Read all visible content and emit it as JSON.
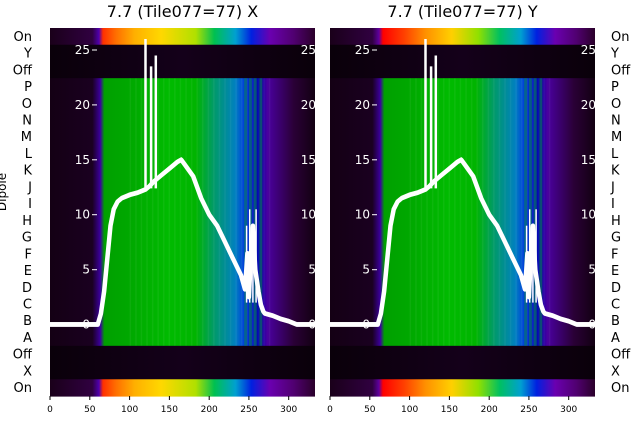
{
  "chart_data": [
    {
      "type": "heatmap",
      "title": "7.7 (Tile077=77) X",
      "ylabel": "Dipole",
      "x_ticks": [
        0,
        50,
        100,
        150,
        200,
        250,
        300
      ],
      "xlim": [
        0,
        333
      ],
      "row_labels": [
        "On",
        "Y",
        "Off",
        "P",
        "O",
        "N",
        "M",
        "L",
        "K",
        "J",
        "I",
        "H",
        "G",
        "F",
        "E",
        "D",
        "C",
        "B",
        "A",
        "Off",
        "X",
        "On"
      ],
      "overlay_y_ticks": [
        0,
        5,
        10,
        15,
        20,
        25
      ],
      "overlay_ylim": [
        -6.5,
        27
      ],
      "overlay_line": {
        "x": [
          0,
          60,
          64,
          68,
          72,
          76,
          80,
          85,
          90,
          100,
          110,
          120,
          125,
          130,
          140,
          150,
          160,
          165,
          170,
          180,
          190,
          200,
          210,
          220,
          230,
          240,
          245,
          248,
          250,
          252,
          255,
          258,
          262,
          265,
          268,
          270,
          280,
          290,
          300,
          310,
          320,
          333
        ],
        "y": [
          0,
          0,
          1,
          3,
          6,
          9,
          10.5,
          11.2,
          11.5,
          11.8,
          12,
          12.3,
          12.6,
          13,
          13.6,
          14.2,
          14.8,
          15,
          14.5,
          13.5,
          11.5,
          10,
          9,
          7.5,
          6,
          4.5,
          3.2,
          6.5,
          2.5,
          5.5,
          9,
          5,
          3,
          1.8,
          1.2,
          1,
          0.8,
          0.5,
          0.3,
          0,
          0,
          0
        ]
      }
    },
    {
      "type": "heatmap",
      "title": "7.7 (Tile077=77) Y",
      "x_ticks": [
        0,
        50,
        100,
        150,
        200,
        250,
        300
      ],
      "xlim": [
        0,
        333
      ],
      "row_labels": [
        "On",
        "Y",
        "Off",
        "P",
        "O",
        "N",
        "M",
        "L",
        "K",
        "J",
        "I",
        "H",
        "G",
        "F",
        "E",
        "D",
        "C",
        "B",
        "A",
        "Off",
        "X",
        "On"
      ],
      "overlay_y_ticks": [
        0,
        5,
        10,
        15,
        20,
        25
      ],
      "overlay_ylim": [
        -6.5,
        27
      ],
      "overlay_line": {
        "x": [
          0,
          60,
          64,
          68,
          72,
          76,
          80,
          85,
          90,
          100,
          110,
          120,
          125,
          130,
          140,
          150,
          160,
          165,
          170,
          180,
          190,
          200,
          210,
          220,
          230,
          240,
          245,
          248,
          250,
          252,
          255,
          258,
          262,
          265,
          268,
          270,
          280,
          290,
          300,
          310,
          320,
          333
        ],
        "y": [
          0,
          0,
          1,
          3,
          6,
          9,
          10.5,
          11.2,
          11.5,
          11.8,
          12,
          12.3,
          12.6,
          13,
          13.6,
          14.2,
          14.8,
          15,
          14.5,
          13.5,
          11.5,
          10,
          9,
          7.5,
          6,
          4.5,
          3.2,
          6.5,
          2.5,
          5.5,
          9,
          5,
          3,
          1.8,
          1.2,
          1,
          0.8,
          0.5,
          0.3,
          0,
          0,
          0
        ]
      }
    }
  ]
}
